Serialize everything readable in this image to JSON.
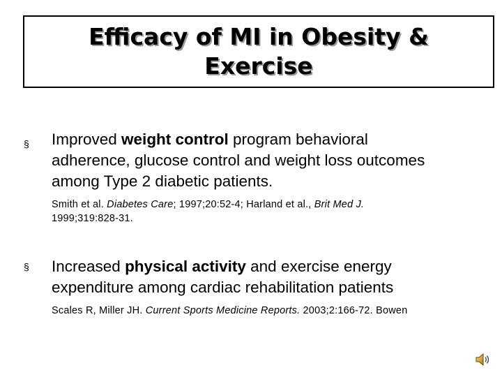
{
  "slide": {
    "title_line1": "Efficacy of MI in Obesity &",
    "title_line2": "Exercise",
    "bullet_glyph": "§",
    "point1": {
      "line1_pre": "Improved ",
      "line1_bold": "weight control",
      "line1_post": " program behavioral",
      "line2": "adherence, glucose control and weight loss outcomes",
      "line3": "among Type 2 diabetic patients.",
      "ref_a": "Smith et al. ",
      "ref_a_italic": "Diabetes Care",
      "ref_b": "; 1997;20:52-4; Harland et al., ",
      "ref_b_italic": "Brit Med J.",
      "ref_c": "1999;319:828-31."
    },
    "point2": {
      "line1_pre": "Increased ",
      "line1_bold": "physical activity",
      "line1_post": " and exercise energy",
      "line2": "expenditure among cardiac rehabilitation patients",
      "ref_a": "Scales R, Miller JH. ",
      "ref_a_italic": "Current Sports Medicine Reports.",
      "ref_b": " 2003;2:166-72. Bowen"
    },
    "audio_icon": "speaker-icon"
  }
}
